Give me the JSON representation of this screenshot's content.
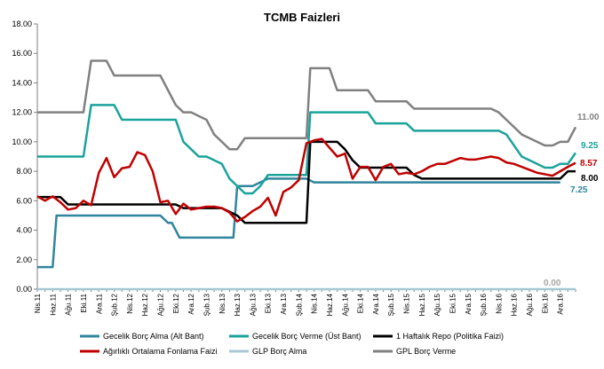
{
  "chart_data": {
    "type": "line",
    "title": "TCMB Faizleri",
    "xlabel": "",
    "ylabel": "",
    "ylim": [
      0,
      18
    ],
    "yticks": [
      "0.00",
      "2.00",
      "4.00",
      "6.00",
      "8.00",
      "10.00",
      "12.00",
      "14.00",
      "16.00",
      "18.00"
    ],
    "grid": false,
    "legend_position": "bottom",
    "x_labels": [
      "Nis.11",
      "Haz.11",
      "Ağu.11",
      "Eki.11",
      "Ara.11",
      "Şub.12",
      "Nis.12",
      "Haz.12",
      "Ağu.12",
      "Eki.12",
      "Ara.12",
      "Şub.13",
      "Nis.13",
      "Haz.13",
      "Ağu.13",
      "Eki.13",
      "Ara.13",
      "Şub.14",
      "Nis.14",
      "Haz.14",
      "Ağu.14",
      "Eki.14",
      "Ara.14",
      "Şub.15",
      "Nis.15",
      "Haz.15",
      "Ağu.15",
      "Eki.15",
      "Ara.15",
      "Şub.16",
      "Nis.16",
      "Haz.16",
      "Ağu.16",
      "Eki.16",
      "Ara.16"
    ],
    "series": [
      {
        "name": "Gecelik Borç Alma (Alt Bant)",
        "color": "#31859C",
        "end_label": "7.25",
        "points": [
          [
            0,
            1.5
          ],
          [
            2,
            1.5
          ],
          [
            2.5,
            5
          ],
          [
            4,
            5
          ],
          [
            16,
            5
          ],
          [
            17,
            4.5
          ],
          [
            17.5,
            4.5
          ],
          [
            18,
            4
          ],
          [
            18.5,
            3.5
          ],
          [
            25,
            3.5
          ],
          [
            25.5,
            3.5
          ],
          [
            26,
            7
          ],
          [
            28,
            7
          ],
          [
            30,
            7.5
          ],
          [
            35,
            7.5
          ],
          [
            36,
            7.25
          ],
          [
            68,
            7.25
          ]
        ]
      },
      {
        "name": "Gecelik Borç Verme (Üst Bant)",
        "color": "#1AA39B",
        "end_label": "9.25",
        "points": [
          [
            0,
            9
          ],
          [
            6,
            9
          ],
          [
            7,
            12.5
          ],
          [
            10,
            12.5
          ],
          [
            11,
            11.5
          ],
          [
            18,
            11.5
          ],
          [
            19,
            10
          ],
          [
            20,
            9.5
          ],
          [
            21,
            9
          ],
          [
            22,
            9
          ],
          [
            24,
            8.5
          ],
          [
            25,
            7.5
          ],
          [
            26,
            7
          ],
          [
            27,
            6.5
          ],
          [
            28,
            6.5
          ],
          [
            29,
            7
          ],
          [
            30,
            7.75
          ],
          [
            34,
            7.75
          ],
          [
            35,
            7.75
          ],
          [
            35.5,
            12
          ],
          [
            43,
            12
          ],
          [
            44,
            11.25
          ],
          [
            48,
            11.25
          ],
          [
            49,
            10.75
          ],
          [
            60,
            10.75
          ],
          [
            61,
            10.5
          ],
          [
            62,
            9.75
          ],
          [
            63,
            9
          ],
          [
            64,
            8.75
          ],
          [
            65,
            8.5
          ],
          [
            66,
            8.25
          ],
          [
            67,
            8.25
          ],
          [
            68,
            8.5
          ],
          [
            69,
            8.5
          ],
          [
            70,
            9.25
          ]
        ]
      },
      {
        "name": "1 Haftalık Repo (Politika Faizi)",
        "color": "#000000",
        "end_label": "8.00",
        "points": [
          [
            0,
            6.25
          ],
          [
            3,
            6.25
          ],
          [
            4,
            5.75
          ],
          [
            18,
            5.75
          ],
          [
            19,
            5.5
          ],
          [
            21,
            5.5
          ],
          [
            23,
            5.5
          ],
          [
            24,
            5.5
          ],
          [
            25,
            5.25
          ],
          [
            26,
            5
          ],
          [
            27,
            4.5
          ],
          [
            34,
            4.5
          ],
          [
            35,
            4.5
          ],
          [
            35.5,
            10
          ],
          [
            38,
            10
          ],
          [
            39,
            10
          ],
          [
            40,
            9.5
          ],
          [
            41,
            8.75
          ],
          [
            42,
            8.25
          ],
          [
            48,
            8.25
          ],
          [
            49,
            7.75
          ],
          [
            50,
            7.5
          ],
          [
            68,
            7.5
          ],
          [
            69,
            8
          ],
          [
            70,
            8
          ]
        ]
      },
      {
        "name": "Ağırlıklı Ortalama Fonlama Faizi",
        "color": "#C00000",
        "end_label": "8.57",
        "points": [
          [
            0,
            6.3
          ],
          [
            1,
            6.0
          ],
          [
            2,
            6.3
          ],
          [
            3,
            5.9
          ],
          [
            4,
            5.4
          ],
          [
            5,
            5.5
          ],
          [
            6,
            6.0
          ],
          [
            7,
            5.7
          ],
          [
            8,
            7.9
          ],
          [
            9,
            8.9
          ],
          [
            10,
            7.6
          ],
          [
            11,
            8.2
          ],
          [
            12,
            8.3
          ],
          [
            13,
            9.3
          ],
          [
            14,
            9.1
          ],
          [
            15,
            8.0
          ],
          [
            16,
            5.9
          ],
          [
            17,
            6.0
          ],
          [
            18,
            5.1
          ],
          [
            19,
            5.8
          ],
          [
            20,
            5.4
          ],
          [
            21,
            5.5
          ],
          [
            22,
            5.6
          ],
          [
            23,
            5.6
          ],
          [
            24,
            5.5
          ],
          [
            25,
            5.2
          ],
          [
            26,
            4.6
          ],
          [
            27,
            4.9
          ],
          [
            28,
            5.3
          ],
          [
            29,
            5.6
          ],
          [
            30,
            6.2
          ],
          [
            31,
            5.0
          ],
          [
            32,
            6.6
          ],
          [
            33,
            6.9
          ],
          [
            34,
            7.4
          ],
          [
            35,
            9.9
          ],
          [
            36,
            10.1
          ],
          [
            37,
            10.2
          ],
          [
            38,
            9.6
          ],
          [
            39,
            9.0
          ],
          [
            40,
            9.2
          ],
          [
            41,
            7.5
          ],
          [
            42,
            8.3
          ],
          [
            43,
            8.3
          ],
          [
            44,
            7.4
          ],
          [
            45,
            8.3
          ],
          [
            46,
            8.5
          ],
          [
            47,
            7.8
          ],
          [
            48,
            7.9
          ],
          [
            49,
            7.8
          ],
          [
            50,
            8.0
          ],
          [
            51,
            8.3
          ],
          [
            52,
            8.5
          ],
          [
            53,
            8.5
          ],
          [
            54,
            8.7
          ],
          [
            55,
            8.9
          ],
          [
            56,
            8.8
          ],
          [
            57,
            8.8
          ],
          [
            58,
            8.9
          ],
          [
            59,
            9.0
          ],
          [
            60,
            8.9
          ],
          [
            61,
            8.6
          ],
          [
            62,
            8.5
          ],
          [
            63,
            8.3
          ],
          [
            64,
            8.1
          ],
          [
            65,
            7.9
          ],
          [
            66,
            7.8
          ],
          [
            67,
            7.7
          ],
          [
            68,
            8.0
          ],
          [
            69,
            8.3
          ],
          [
            70,
            8.57
          ]
        ]
      },
      {
        "name": "GLP Borç Alma",
        "color": "#A6C8D5",
        "end_label": "0.00",
        "points": [
          [
            0,
            0
          ],
          [
            70,
            0
          ]
        ]
      },
      {
        "name": "GPL Borç Verme",
        "color": "#808080",
        "end_label": "11.00",
        "points": [
          [
            0,
            12
          ],
          [
            6,
            12
          ],
          [
            7,
            15.5
          ],
          [
            9,
            15.5
          ],
          [
            10,
            14.5
          ],
          [
            16,
            14.5
          ],
          [
            17,
            13.5
          ],
          [
            18,
            12.5
          ],
          [
            19,
            12
          ],
          [
            20,
            12
          ],
          [
            22,
            11.5
          ],
          [
            23,
            10.5
          ],
          [
            24,
            10
          ],
          [
            25,
            9.5
          ],
          [
            26,
            9.5
          ],
          [
            27,
            10.25
          ],
          [
            34,
            10.25
          ],
          [
            35,
            10.25
          ],
          [
            35.5,
            15
          ],
          [
            38,
            15
          ],
          [
            39,
            13.5
          ],
          [
            42,
            13.5
          ],
          [
            43,
            13.5
          ],
          [
            44,
            12.75
          ],
          [
            48,
            12.75
          ],
          [
            49,
            12.25
          ],
          [
            59,
            12.25
          ],
          [
            60,
            12
          ],
          [
            61,
            11.5
          ],
          [
            62,
            11
          ],
          [
            63,
            10.5
          ],
          [
            64,
            10.25
          ],
          [
            65,
            10
          ],
          [
            66,
            9.75
          ],
          [
            67,
            9.75
          ],
          [
            68,
            10
          ],
          [
            69,
            10
          ],
          [
            70,
            11
          ]
        ]
      }
    ]
  }
}
